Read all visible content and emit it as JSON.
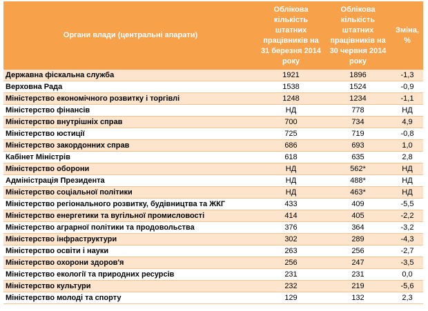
{
  "header": {
    "col_name": "Органи влади (центральні апарати)",
    "col_march": "Облікова кількість штатних працівників на 31 березня 2014 року",
    "col_june": "Облікова кількість штатних працівників на 30 червня 2014 року",
    "col_change": "Зміна, %"
  },
  "rows": [
    {
      "name": "Державна фіскальна служба",
      "march": "1921",
      "june": "1896",
      "change": "-1,3"
    },
    {
      "name": "Верховна Рада",
      "march": "1538",
      "june": "1524",
      "change": "-0,9"
    },
    {
      "name": "Міністерство економічного розвитку і торгівлі",
      "march": "1248",
      "june": "1234",
      "change": "-1,1"
    },
    {
      "name": "Міністерство фінансів",
      "march": "НД",
      "june": "778",
      "change": "НД"
    },
    {
      "name": "Міністерство внутрішніх справ",
      "march": "700",
      "june": "734",
      "change": "4,9"
    },
    {
      "name": "Міністерство юстиції",
      "march": "725",
      "june": "719",
      "change": "-0,8"
    },
    {
      "name": "Міністерство закордонних справ",
      "march": "686",
      "june": "693",
      "change": "1,0"
    },
    {
      "name": "Кабінет Міністрів",
      "march": "618",
      "june": "635",
      "change": "2,8"
    },
    {
      "name": "Міністерство оборони",
      "march": "НД",
      "june": "562*",
      "change": "НД"
    },
    {
      "name": "Адміністрація Президента",
      "march": "НД",
      "june": "488*",
      "change": "НД"
    },
    {
      "name": "Міністерство соціальної політики",
      "march": "НД",
      "june": "463*",
      "change": "НД"
    },
    {
      "name": "Міністерство регіонального розвитку, будівництва та ЖКГ",
      "march": "433",
      "june": "409",
      "change": "-5,5"
    },
    {
      "name": "Міністерство енергетики та вугільної промисловості",
      "march": "414",
      "june": "405",
      "change": "-2,2"
    },
    {
      "name": "Міністерство аграрної політики та продовольства",
      "march": "376",
      "june": "364",
      "change": "-3,2"
    },
    {
      "name": "Міністерство інфраструктури",
      "march": "302",
      "june": "289",
      "change": "-4,3"
    },
    {
      "name": "Міністерство освіти і науки",
      "march": "263",
      "june": "256",
      "change": "-2,7"
    },
    {
      "name": "Міністерство охорони здоров'я",
      "march": "256",
      "june": "247",
      "change": "-3,5"
    },
    {
      "name": "Міністерство екології та природних ресурсів",
      "march": "231",
      "june": "231",
      "change": "0,0"
    },
    {
      "name": "Міністерство культури",
      "march": "232",
      "june": "219",
      "change": "-5,6"
    },
    {
      "name": "Міністерство молоді та спорту",
      "march": "129",
      "june": "132",
      "change": "2,3"
    }
  ],
  "colors": {
    "header_bg": "#f7a24b",
    "header_text": "#ffffff",
    "row_alt_bg": "#fce4cd",
    "row_border": "#f3c28f"
  }
}
